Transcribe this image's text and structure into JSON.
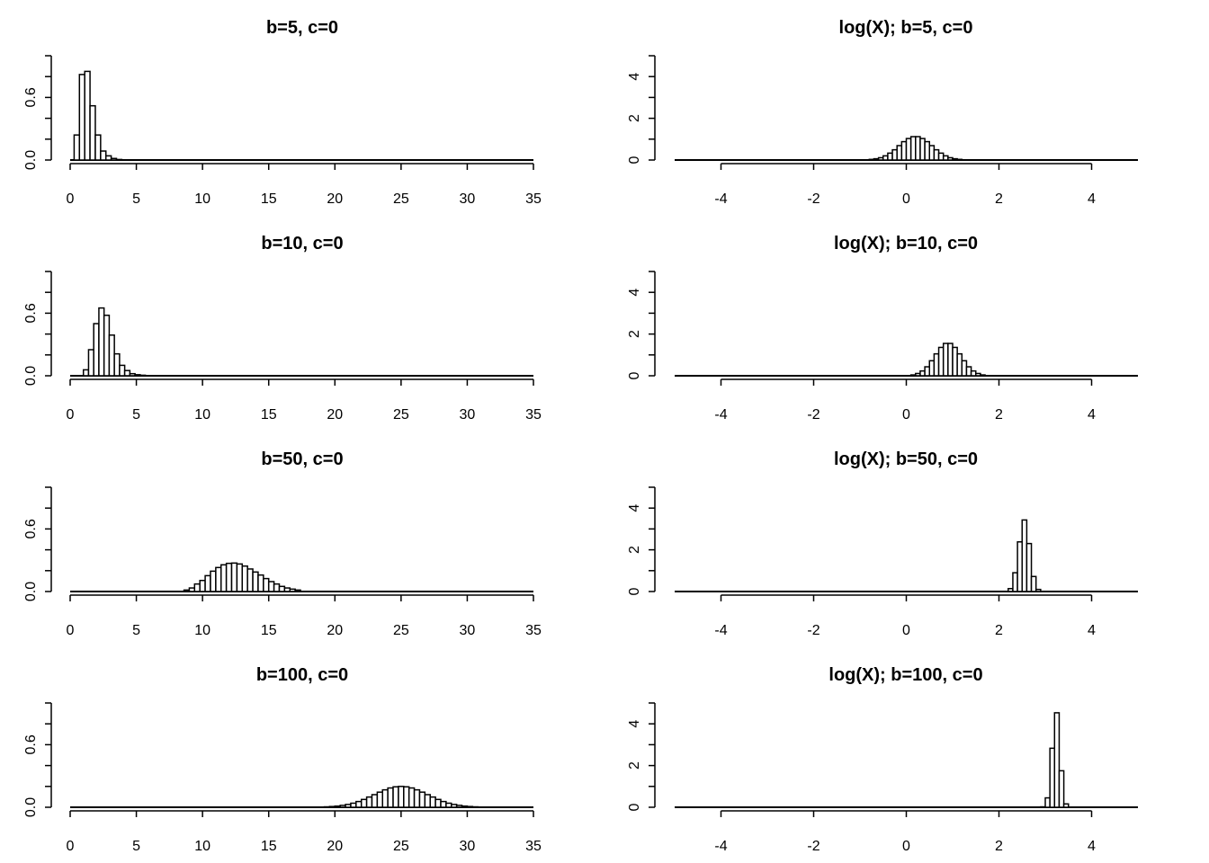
{
  "chart_data": [
    {
      "type": "bar",
      "title": "b=5, c=0",
      "xlim": [
        0,
        35
      ],
      "ylim": [
        0,
        1.0
      ],
      "xticks": [
        0,
        5,
        10,
        15,
        20,
        25,
        30,
        35
      ],
      "yticks": [
        0,
        0.2,
        0.4,
        0.6,
        0.8,
        1.0
      ],
      "ytick_labels": [
        "0.0",
        "",
        "",
        "0.6",
        "",
        ""
      ],
      "bin_start": 0.3,
      "bin_width": 0.4,
      "values": [
        0.24,
        0.82,
        0.85,
        0.52,
        0.24,
        0.086,
        0.04,
        0.015,
        0.005,
        0.002
      ]
    },
    {
      "type": "bar",
      "title": "log(X); b=5, c=0",
      "xlim": [
        -5,
        5
      ],
      "ylim": [
        0,
        5
      ],
      "xticks": [
        -4,
        -2,
        0,
        2,
        4
      ],
      "yticks": [
        0,
        1,
        2,
        3,
        4,
        5
      ],
      "ytick_labels": [
        "0",
        "",
        "2",
        "",
        "4",
        ""
      ],
      "bin_start": -0.8,
      "bin_width": 0.1,
      "values": [
        0.03,
        0.06,
        0.11,
        0.2,
        0.33,
        0.49,
        0.69,
        0.88,
        1.03,
        1.12,
        1.12,
        1.03,
        0.88,
        0.69,
        0.49,
        0.33,
        0.2,
        0.11,
        0.06,
        0.03
      ]
    },
    {
      "type": "bar",
      "title": "b=10, c=0",
      "xlim": [
        0,
        35
      ],
      "ylim": [
        0,
        1.0
      ],
      "xticks": [
        0,
        5,
        10,
        15,
        20,
        25,
        30,
        35
      ],
      "yticks": [
        0,
        0.2,
        0.4,
        0.6,
        0.8,
        1.0
      ],
      "ytick_labels": [
        "0.0",
        "",
        "",
        "0.6",
        "",
        ""
      ],
      "bin_start": 1.0,
      "bin_width": 0.39,
      "values": [
        0.057,
        0.25,
        0.5,
        0.65,
        0.58,
        0.39,
        0.21,
        0.1,
        0.05,
        0.02,
        0.01,
        0.005
      ]
    },
    {
      "type": "bar",
      "title": "log(X); b=10, c=0",
      "xlim": [
        -5,
        5
      ],
      "ylim": [
        0,
        5
      ],
      "xticks": [
        -4,
        -2,
        0,
        2,
        4
      ],
      "yticks": [
        0,
        1,
        2,
        3,
        4,
        5
      ],
      "ytick_labels": [
        "0",
        "",
        "2",
        "",
        "4",
        ""
      ],
      "bin_start": 0.1,
      "bin_width": 0.1,
      "values": [
        0.04,
        0.11,
        0.23,
        0.43,
        0.72,
        1.05,
        1.36,
        1.55,
        1.55,
        1.36,
        1.05,
        0.72,
        0.43,
        0.23,
        0.11,
        0.04
      ]
    },
    {
      "type": "bar",
      "title": "b=50, c=0",
      "xlim": [
        0,
        35
      ],
      "ylim": [
        0,
        1.0
      ],
      "xticks": [
        0,
        5,
        10,
        15,
        20,
        25,
        30,
        35
      ],
      "yticks": [
        0,
        0.2,
        0.4,
        0.6,
        0.8,
        1.0
      ],
      "ytick_labels": [
        "0.0",
        "",
        "",
        "0.6",
        "",
        ""
      ],
      "bin_start": 8.6,
      "bin_width": 0.4,
      "values": [
        0.014,
        0.034,
        0.072,
        0.106,
        0.152,
        0.195,
        0.23,
        0.256,
        0.27,
        0.273,
        0.264,
        0.244,
        0.216,
        0.187,
        0.158,
        0.124,
        0.095,
        0.072,
        0.049,
        0.034,
        0.023,
        0.014
      ]
    },
    {
      "type": "bar",
      "title": "log(X); b=50, c=0",
      "xlim": [
        -5,
        5
      ],
      "ylim": [
        0,
        5
      ],
      "xticks": [
        -4,
        -2,
        0,
        2,
        4
      ],
      "yticks": [
        0,
        1,
        2,
        3,
        4,
        5
      ],
      "ytick_labels": [
        "0",
        "",
        "2",
        "",
        "4",
        ""
      ],
      "bin_start": 2.2,
      "bin_width": 0.1,
      "values": [
        0.14,
        0.9,
        2.38,
        3.43,
        2.3,
        0.72,
        0.1
      ]
    },
    {
      "type": "bar",
      "title": "b=100, c=0",
      "xlim": [
        0,
        35
      ],
      "ylim": [
        0,
        1.0
      ],
      "xticks": [
        0,
        5,
        10,
        15,
        20,
        25,
        30,
        35
      ],
      "yticks": [
        0,
        0.2,
        0.4,
        0.6,
        0.8,
        1.0
      ],
      "ytick_labels": [
        "0.0",
        "",
        "",
        "0.6",
        "",
        ""
      ],
      "bin_start": 18.8,
      "bin_width": 0.4,
      "values": [
        0.002,
        0.004,
        0.007,
        0.011,
        0.018,
        0.027,
        0.039,
        0.055,
        0.075,
        0.098,
        0.121,
        0.145,
        0.167,
        0.185,
        0.196,
        0.2,
        0.196,
        0.185,
        0.167,
        0.145,
        0.121,
        0.098,
        0.075,
        0.055,
        0.039,
        0.027,
        0.018,
        0.011,
        0.007,
        0.004,
        0.002
      ]
    },
    {
      "type": "bar",
      "title": "log(X); b=100, c=0",
      "xlim": [
        -5,
        5
      ],
      "ylim": [
        0,
        5
      ],
      "xticks": [
        -4,
        -2,
        0,
        2,
        4
      ],
      "yticks": [
        0,
        1,
        2,
        3,
        4,
        5
      ],
      "ytick_labels": [
        "0",
        "",
        "2",
        "",
        "4",
        ""
      ],
      "bin_start": 2.9,
      "bin_width": 0.1,
      "values": [
        0.02,
        0.45,
        2.83,
        4.53,
        1.75,
        0.16
      ]
    }
  ]
}
